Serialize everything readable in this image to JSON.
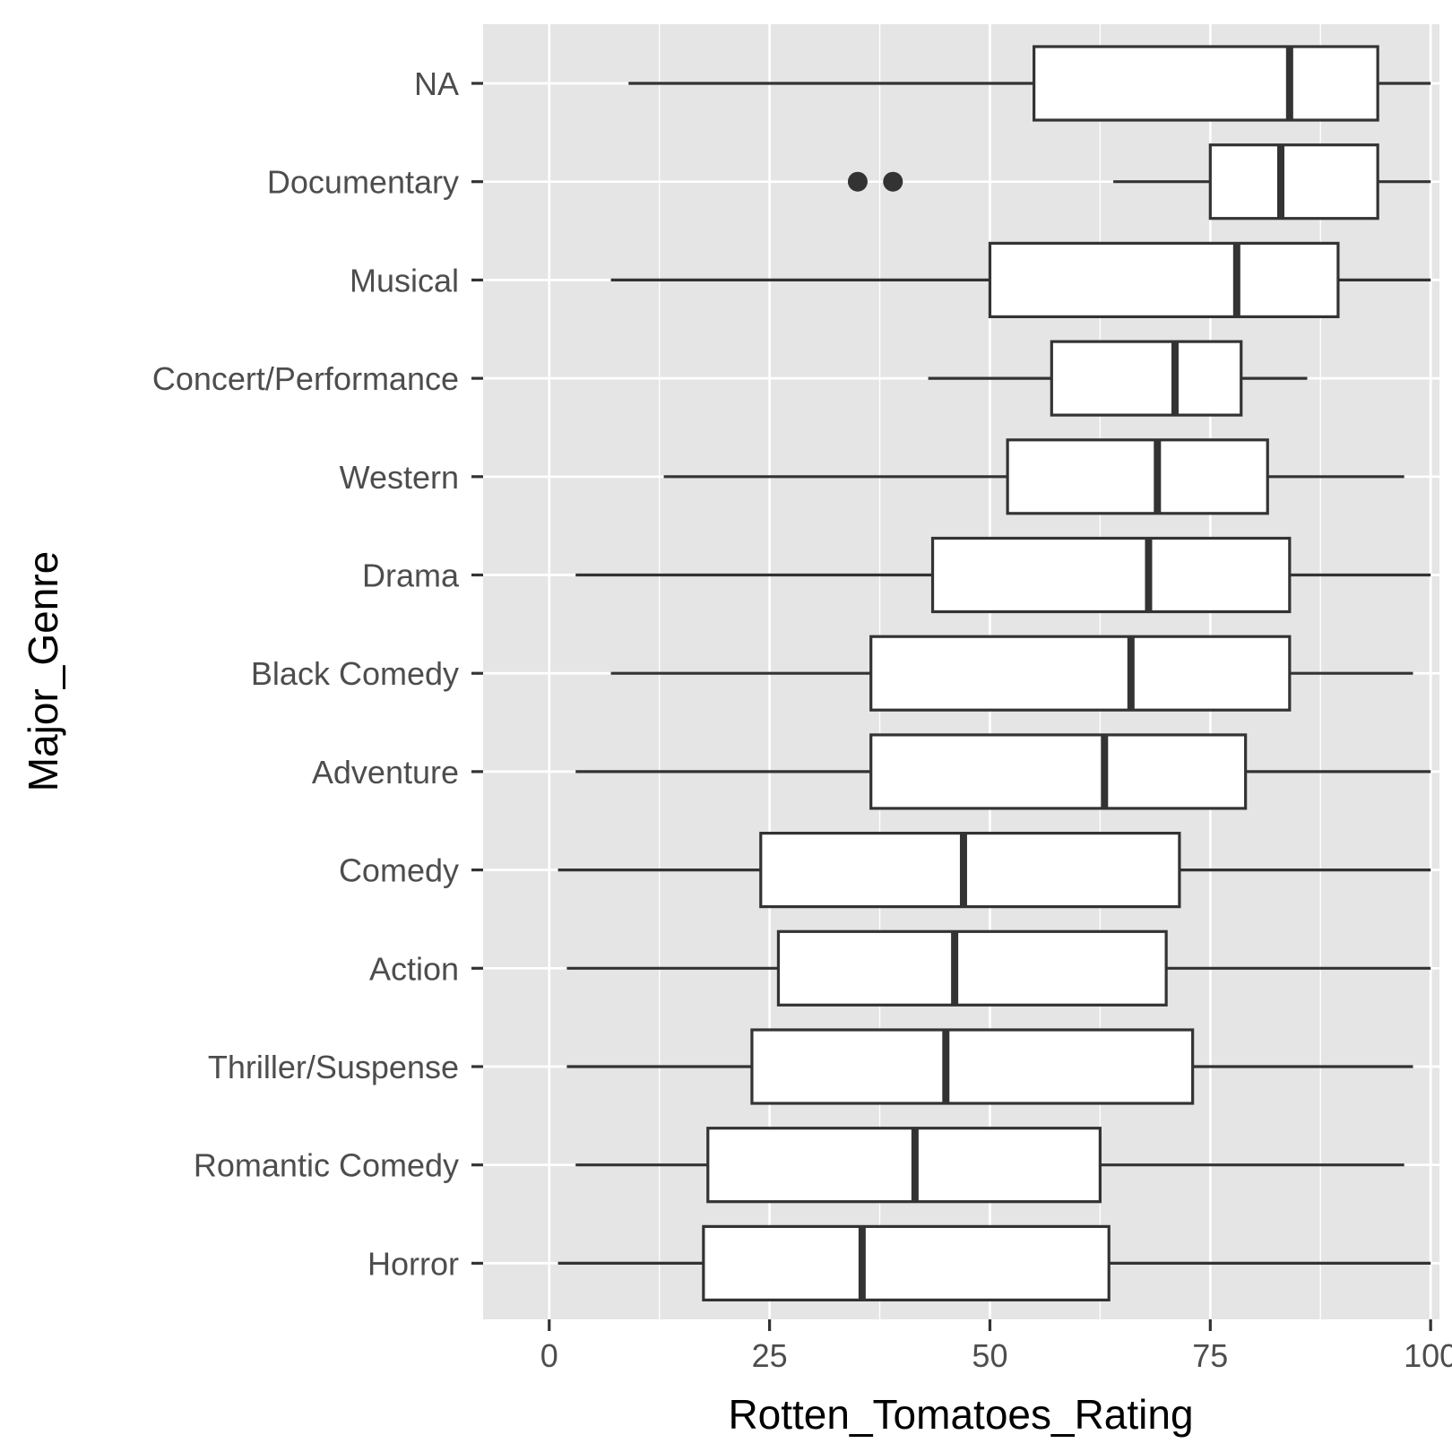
{
  "chart_data": {
    "type": "boxplot",
    "orientation": "horizontal",
    "xlabel": "Rotten_Tomatoes_Rating",
    "ylabel": "Major_Genre",
    "xlim": [
      -7.5,
      101
    ],
    "x_ticks": [
      0,
      25,
      50,
      75,
      100
    ],
    "x_tick_labels": [
      "0",
      "25",
      "50",
      "75",
      "100"
    ],
    "grid": true,
    "categories_top_to_bottom": [
      "NA",
      "Documentary",
      "Musical",
      "Concert/Performance",
      "Western",
      "Drama",
      "Black Comedy",
      "Adventure",
      "Comedy",
      "Action",
      "Thriller/Suspense",
      "Romantic Comedy",
      "Horror"
    ],
    "boxes": [
      {
        "category": "NA",
        "whisker_low": 9,
        "q1": 55,
        "median": 84,
        "q3": 94,
        "whisker_high": 100,
        "outliers": []
      },
      {
        "category": "Documentary",
        "whisker_low": 64,
        "q1": 75,
        "median": 83,
        "q3": 94,
        "whisker_high": 100,
        "outliers": [
          35,
          39
        ]
      },
      {
        "category": "Musical",
        "whisker_low": 7,
        "q1": 50,
        "median": 78,
        "q3": 89.5,
        "whisker_high": 100,
        "outliers": []
      },
      {
        "category": "Concert/Performance",
        "whisker_low": 43,
        "q1": 57,
        "median": 71,
        "q3": 78.5,
        "whisker_high": 86,
        "outliers": []
      },
      {
        "category": "Western",
        "whisker_low": 13,
        "q1": 52,
        "median": 69,
        "q3": 81.5,
        "whisker_high": 97,
        "outliers": []
      },
      {
        "category": "Drama",
        "whisker_low": 3,
        "q1": 43.5,
        "median": 68,
        "q3": 84,
        "whisker_high": 100,
        "outliers": []
      },
      {
        "category": "Black Comedy",
        "whisker_low": 7,
        "q1": 36.5,
        "median": 66,
        "q3": 84,
        "whisker_high": 98,
        "outliers": []
      },
      {
        "category": "Adventure",
        "whisker_low": 3,
        "q1": 36.5,
        "median": 63,
        "q3": 79,
        "whisker_high": 100,
        "outliers": []
      },
      {
        "category": "Comedy",
        "whisker_low": 1,
        "q1": 24,
        "median": 47,
        "q3": 71.5,
        "whisker_high": 100,
        "outliers": []
      },
      {
        "category": "Action",
        "whisker_low": 2,
        "q1": 26,
        "median": 46,
        "q3": 70,
        "whisker_high": 100,
        "outliers": []
      },
      {
        "category": "Thriller/Suspense",
        "whisker_low": 2,
        "q1": 23,
        "median": 45,
        "q3": 73,
        "whisker_high": 98,
        "outliers": []
      },
      {
        "category": "Romantic Comedy",
        "whisker_low": 3,
        "q1": 18,
        "median": 41.5,
        "q3": 62.5,
        "whisker_high": 97,
        "outliers": []
      },
      {
        "category": "Horror",
        "whisker_low": 1,
        "q1": 17.5,
        "median": 35.5,
        "q3": 63.5,
        "whisker_high": 100,
        "outliers": []
      }
    ],
    "colors": {
      "panel_background": "#e5e5e5",
      "grid": "#ffffff",
      "box_fill": "#ffffff",
      "box_stroke": "#333333",
      "tick_text": "#4d4d4d",
      "title_text": "#000000"
    }
  }
}
